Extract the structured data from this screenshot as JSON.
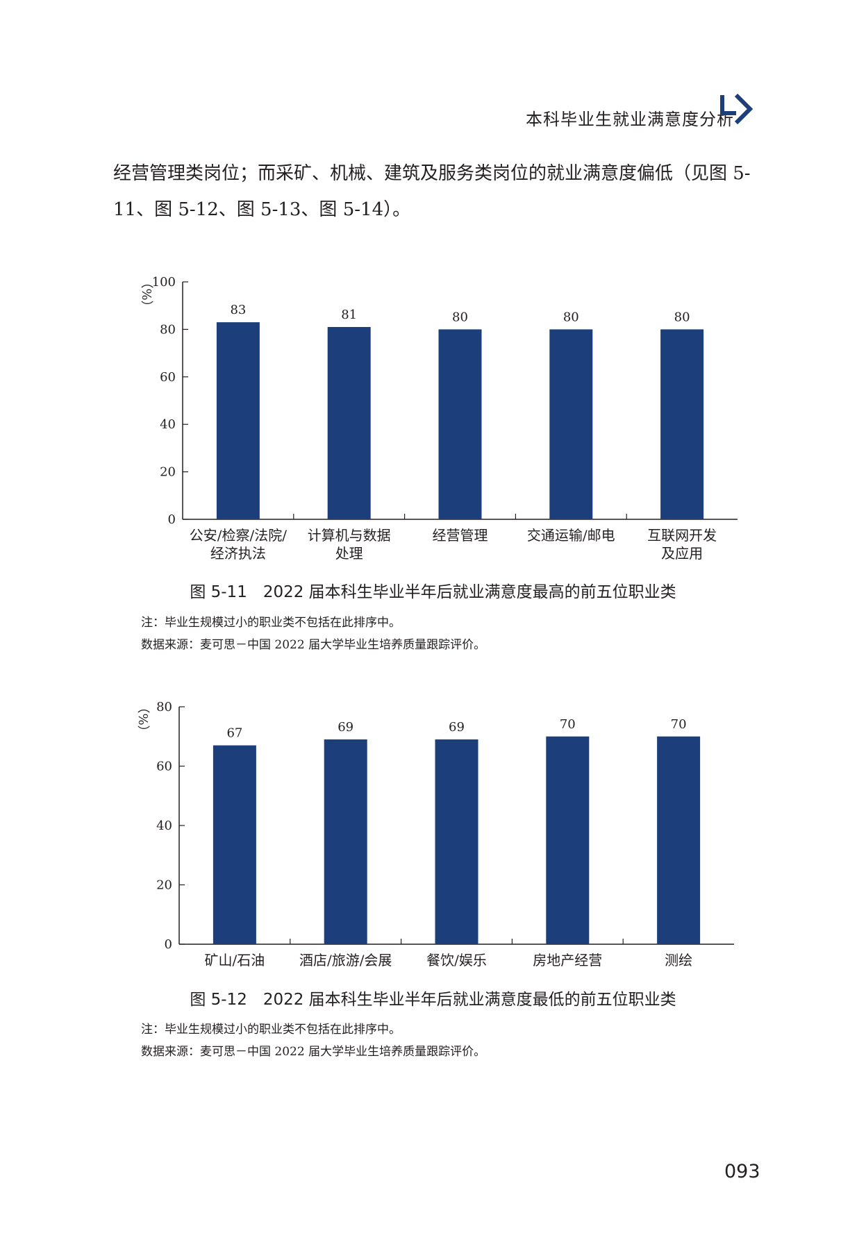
{
  "header": {
    "title": "本科毕业生就业满意度分析",
    "logo_icon": "chapter-arrow-icon",
    "logo_color": "#1c3f7c"
  },
  "body_text": "经营管理类岗位；而采矿、机械、建筑及服务类岗位的就业满意度偏低（见图 5-11、图 5-12、图 5-13、图 5-14）。",
  "figures": [
    {
      "caption": "图 5-11　2022 届本科生毕业半年后就业满意度最高的前五位职业类",
      "note": "注：毕业生规模过小的职业类不包括在此排序中。",
      "source": "数据来源：麦可思－中国 2022 届大学毕业生培养质量跟踪评价。"
    },
    {
      "caption": "图 5-12　2022 届本科生毕业半年后就业满意度最低的前五位职业类",
      "note": "注：毕业生规模过小的职业类不包括在此排序中。",
      "source": "数据来源：麦可思－中国 2022 届大学毕业生培养质量跟踪评价。"
    }
  ],
  "page_number": "093",
  "chart_data": [
    {
      "type": "bar",
      "ylabel": "（%）",
      "ylim": [
        0,
        100
      ],
      "yticks": [
        0,
        20,
        40,
        60,
        80,
        100
      ],
      "categories": [
        [
          "公安/检察/法院/",
          "经济执法"
        ],
        [
          "计算机与数据",
          "处理"
        ],
        [
          "经营管理"
        ],
        [
          "交通运输/邮电"
        ],
        [
          "互联网开发",
          "及应用"
        ]
      ],
      "values": [
        83,
        81,
        80,
        80,
        80
      ],
      "bar_color": "#1c3f7c",
      "grid": false
    },
    {
      "type": "bar",
      "ylabel": "（%）",
      "ylim": [
        0,
        80
      ],
      "yticks": [
        0,
        20,
        40,
        60,
        80
      ],
      "categories": [
        [
          "矿山/石油"
        ],
        [
          "酒店/旅游/会展"
        ],
        [
          "餐饮/娱乐"
        ],
        [
          "房地产经营"
        ],
        [
          "测绘"
        ]
      ],
      "values": [
        67,
        69,
        69,
        70,
        70
      ],
      "bar_color": "#1c3f7c",
      "grid": false
    }
  ]
}
